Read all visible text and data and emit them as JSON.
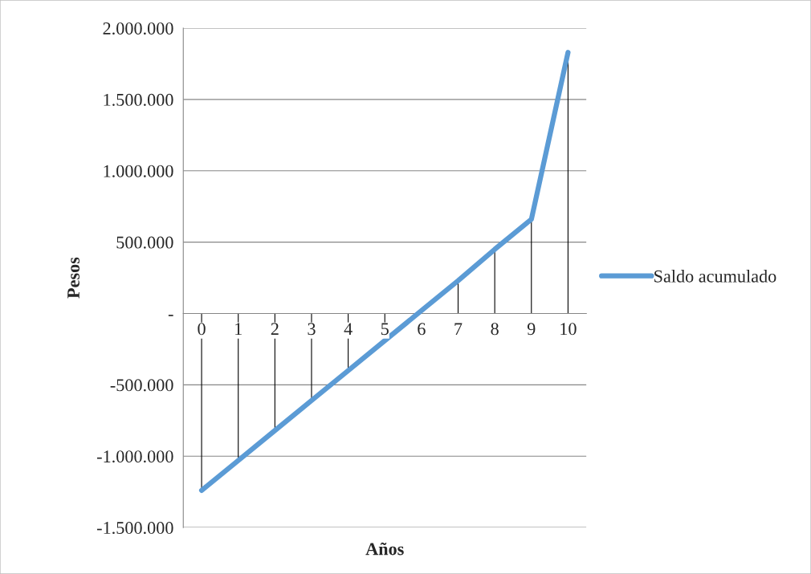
{
  "chart_data": {
    "type": "line",
    "xlabel": "Años",
    "ylabel": "Pesos",
    "categories": [
      "0",
      "1",
      "2",
      "3",
      "4",
      "5",
      "6",
      "7",
      "8",
      "9",
      "10"
    ],
    "series": [
      {
        "name": "Saldo acumulado",
        "color": "#5b9bd5",
        "values": [
          -1240000,
          -1030000,
          -820000,
          -610000,
          -400000,
          -190000,
          20000,
          230000,
          450000,
          660000,
          1830000
        ],
        "errors": [
          [
            -1240000,
            0
          ],
          [
            -1030000,
            0
          ],
          [
            -820000,
            0
          ],
          [
            -610000,
            0
          ],
          [
            -400000,
            0
          ],
          [
            -190000,
            0
          ],
          [
            0,
            20000
          ],
          [
            0,
            230000
          ],
          [
            0,
            450000
          ],
          [
            0,
            660000
          ],
          [
            0,
            1830000
          ]
        ]
      }
    ],
    "ylim": [
      -1500000,
      2000000
    ],
    "yticks": [
      {
        "value": -1500000,
        "label": "-1.500.000"
      },
      {
        "value": -1000000,
        "label": "-1.000.000"
      },
      {
        "value": -500000,
        "label": "-500.000"
      },
      {
        "value": 0,
        "label": "-"
      },
      {
        "value": 500000,
        "label": "500.000"
      },
      {
        "value": 1000000,
        "label": "1.000.000"
      },
      {
        "value": 1500000,
        "label": "1.500.000"
      },
      {
        "value": 2000000,
        "label": "2.000.000"
      }
    ],
    "grid": "y",
    "legend": "right",
    "marker": "none",
    "line_style": "solid"
  }
}
